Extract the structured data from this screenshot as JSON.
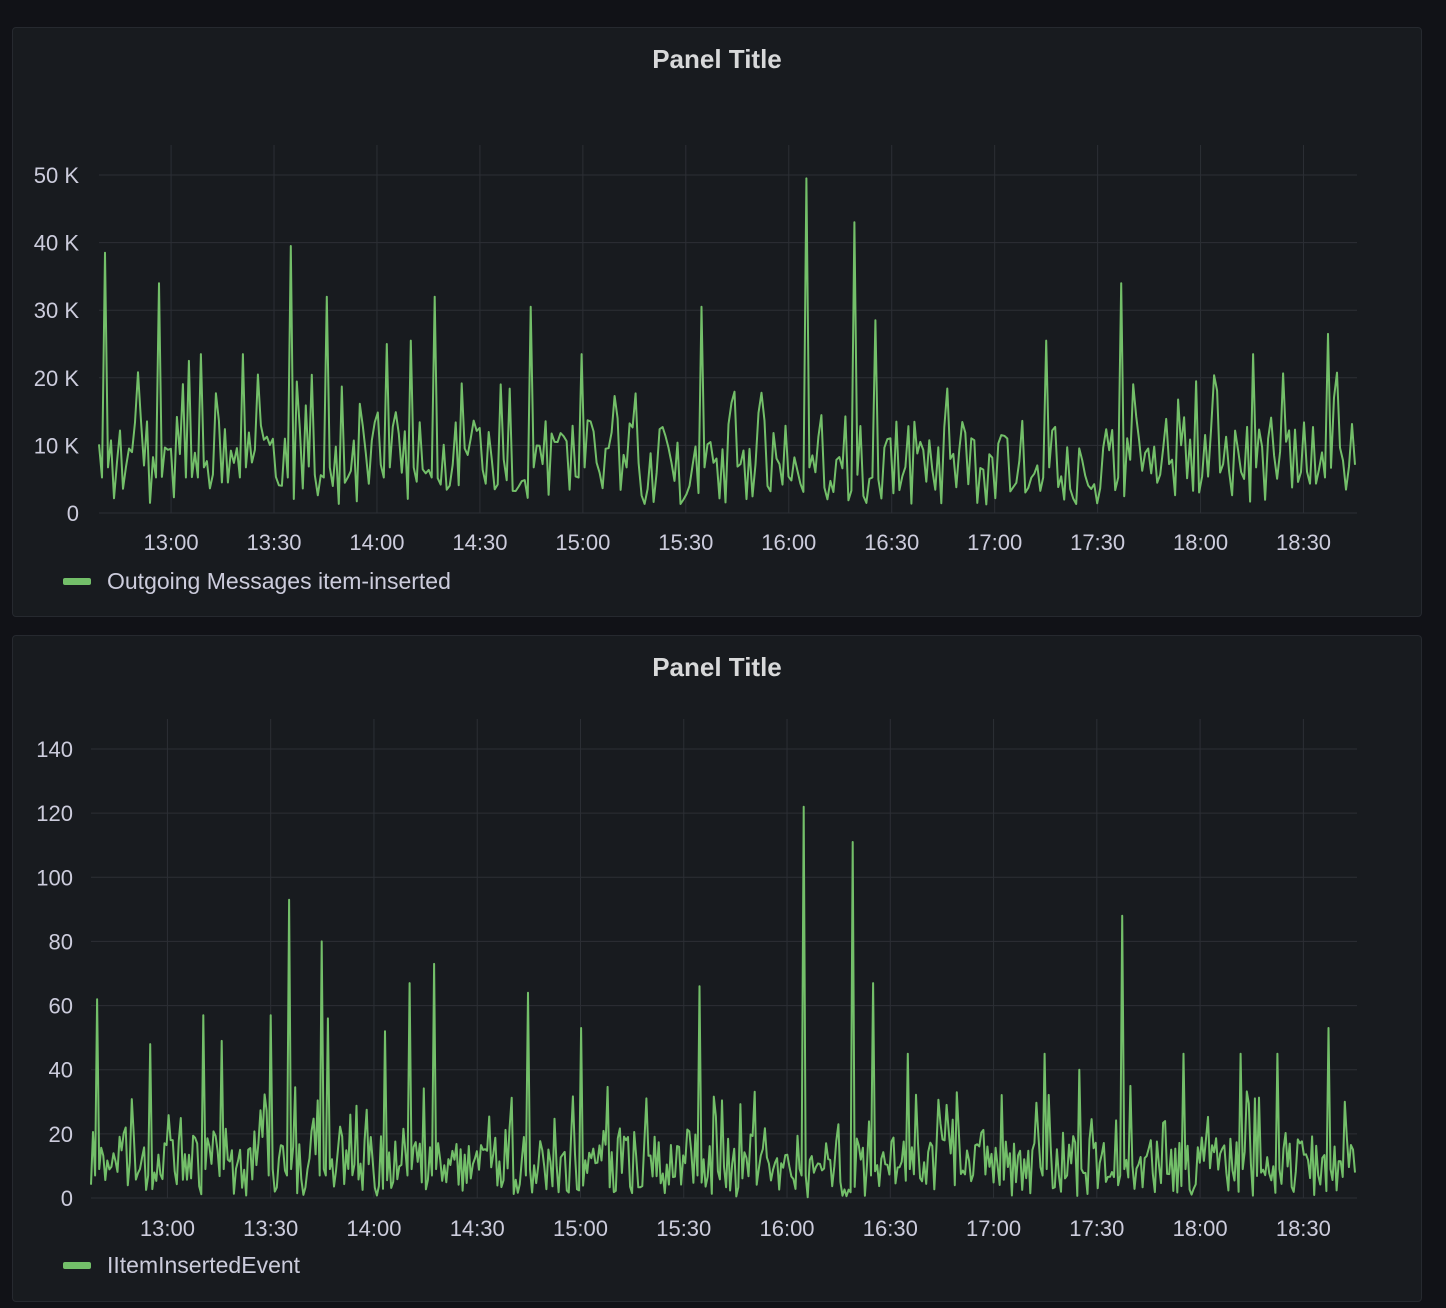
{
  "panels": [
    {
      "title": "Panel Title",
      "legend": "Outgoing Messages item-inserted"
    },
    {
      "title": "Panel Title",
      "legend": "IItemInsertedEvent"
    }
  ],
  "colors": {
    "series": "#73bf69",
    "background": "#111217",
    "panel": "#181b1f",
    "grid": "#2c2f35",
    "text": "#ccccdc"
  },
  "chart_data": [
    {
      "type": "line",
      "title": "Panel Title",
      "xlabel": "",
      "ylabel": "",
      "ylim": [
        0,
        50000
      ],
      "y_ticks": [
        0,
        10000,
        20000,
        30000,
        40000,
        50000
      ],
      "y_tick_labels": [
        "0",
        "10 K",
        "20 K",
        "30 K",
        "40 K",
        "50 K"
      ],
      "x_range_minutes": [
        12.65,
        18.75
      ],
      "x_ticks": [
        13.0,
        13.5,
        14.0,
        14.5,
        15.0,
        15.5,
        16.0,
        16.5,
        17.0,
        17.5,
        18.0,
        18.5
      ],
      "x_tick_labels": [
        "13:00",
        "13:30",
        "14:00",
        "14:30",
        "15:00",
        "15:30",
        "16:00",
        "16:30",
        "17:00",
        "17:30",
        "18:00",
        "18:30"
      ],
      "series": [
        {
          "name": "Outgoing Messages item-inserted",
          "color": "#73bf69",
          "peaks": [
            {
              "x": 12.68,
              "y": 38500
            },
            {
              "x": 12.94,
              "y": 34000
            },
            {
              "x": 13.08,
              "y": 22500
            },
            {
              "x": 13.14,
              "y": 23500
            },
            {
              "x": 13.35,
              "y": 23500
            },
            {
              "x": 13.58,
              "y": 39500
            },
            {
              "x": 13.75,
              "y": 32000
            },
            {
              "x": 14.05,
              "y": 25000
            },
            {
              "x": 14.17,
              "y": 25500
            },
            {
              "x": 14.28,
              "y": 32000
            },
            {
              "x": 14.75,
              "y": 30500
            },
            {
              "x": 15.0,
              "y": 23500
            },
            {
              "x": 15.58,
              "y": 30500
            },
            {
              "x": 16.08,
              "y": 49500
            },
            {
              "x": 16.32,
              "y": 43000
            },
            {
              "x": 16.42,
              "y": 28500
            },
            {
              "x": 17.25,
              "y": 25500
            },
            {
              "x": 17.62,
              "y": 34000
            },
            {
              "x": 18.25,
              "y": 23500
            },
            {
              "x": 18.62,
              "y": 26500
            }
          ],
          "baseline_min": 1000,
          "baseline_max": 15000,
          "typical": 7500
        }
      ]
    },
    {
      "type": "line",
      "title": "Panel Title",
      "xlabel": "",
      "ylabel": "",
      "ylim": [
        0,
        140
      ],
      "y_ticks": [
        0,
        20,
        40,
        60,
        80,
        100,
        120,
        140
      ],
      "y_tick_labels": [
        "0",
        "20",
        "40",
        "60",
        "80",
        "100",
        "120",
        "140"
      ],
      "x_range_minutes": [
        12.63,
        18.75
      ],
      "x_ticks": [
        13.0,
        13.5,
        14.0,
        14.5,
        15.0,
        15.5,
        16.0,
        16.5,
        17.0,
        17.5,
        18.0,
        18.5
      ],
      "x_tick_labels": [
        "13:00",
        "13:30",
        "14:00",
        "14:30",
        "15:00",
        "15:30",
        "16:00",
        "16:30",
        "17:00",
        "17:30",
        "18:00",
        "18:30"
      ],
      "series": [
        {
          "name": "IItemInsertedEvent",
          "color": "#73bf69",
          "peaks": [
            {
              "x": 12.66,
              "y": 62
            },
            {
              "x": 12.92,
              "y": 48
            },
            {
              "x": 13.17,
              "y": 57
            },
            {
              "x": 13.26,
              "y": 49
            },
            {
              "x": 13.5,
              "y": 57
            },
            {
              "x": 13.59,
              "y": 93
            },
            {
              "x": 13.75,
              "y": 80
            },
            {
              "x": 13.78,
              "y": 56
            },
            {
              "x": 14.05,
              "y": 52
            },
            {
              "x": 14.17,
              "y": 67
            },
            {
              "x": 14.29,
              "y": 73
            },
            {
              "x": 14.75,
              "y": 64
            },
            {
              "x": 15.0,
              "y": 53
            },
            {
              "x": 15.58,
              "y": 66
            },
            {
              "x": 16.08,
              "y": 122
            },
            {
              "x": 16.32,
              "y": 111
            },
            {
              "x": 16.42,
              "y": 67
            },
            {
              "x": 16.58,
              "y": 45
            },
            {
              "x": 17.25,
              "y": 45
            },
            {
              "x": 17.42,
              "y": 40
            },
            {
              "x": 17.62,
              "y": 88
            },
            {
              "x": 17.92,
              "y": 45
            },
            {
              "x": 18.2,
              "y": 45
            },
            {
              "x": 18.37,
              "y": 45
            },
            {
              "x": 18.62,
              "y": 53
            }
          ],
          "baseline_min": 0,
          "baseline_max": 25,
          "typical": 10
        }
      ]
    }
  ]
}
